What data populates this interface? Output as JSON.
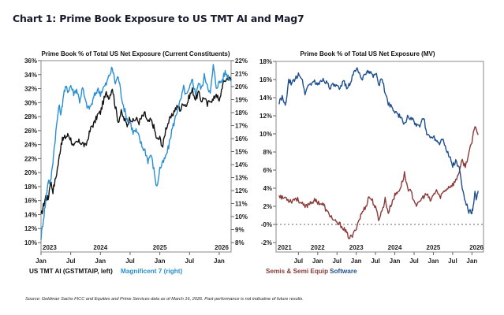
{
  "page_title": "Chart 1: Prime Book Exposure to US TMT AI and Mag7",
  "source_note": "Source: Goldman Sachs FICC and Equities and Prime Services data as of March 16, 2026. Past performance is not indicative of future results.",
  "chart_data": [
    {
      "type": "line",
      "title": "Prime Book % of Total US Net Exposure (Current Constituents)",
      "x_range": [
        "2023-01",
        "2026-03"
      ],
      "x_month_ticks": [
        "Jan",
        "Jul",
        "Jan",
        "Jul",
        "Jan",
        "Jul",
        "Jan"
      ],
      "x_year_labels": [
        "2023",
        "2024",
        "2025",
        "2026"
      ],
      "y_left": {
        "ticks": [
          "10%",
          "12%",
          "14%",
          "16%",
          "18%",
          "20%",
          "22%",
          "24%",
          "26%",
          "28%",
          "30%",
          "32%",
          "34%",
          "36%"
        ],
        "range": [
          10,
          36
        ]
      },
      "y_right": {
        "ticks": [
          "8%",
          "9%",
          "10%",
          "11%",
          "12%",
          "13%",
          "14%",
          "15%",
          "16%",
          "17%",
          "18%",
          "19%",
          "20%",
          "21%",
          "22%"
        ],
        "range": [
          8,
          22
        ]
      },
      "grid": false,
      "legend_position": "bottom",
      "series": [
        {
          "name": "US TMT AI (GSTMTAIP, left)",
          "axis": "left",
          "color": "#111111",
          "x": [
            2023.0,
            2023.04,
            2023.08,
            2023.12,
            2023.16,
            2023.2,
            2023.25,
            2023.3,
            2023.34,
            2023.38,
            2023.42,
            2023.46,
            2023.5,
            2023.55,
            2023.6,
            2023.65,
            2023.7,
            2023.75,
            2023.8,
            2023.85,
            2023.9,
            2023.95,
            2024.0,
            2024.05,
            2024.1,
            2024.15,
            2024.2,
            2024.25,
            2024.3,
            2024.35,
            2024.4,
            2024.45,
            2024.5,
            2024.55,
            2024.6,
            2024.65,
            2024.7,
            2024.75,
            2024.8,
            2024.85,
            2024.9,
            2024.95,
            2025.0,
            2025.05,
            2025.1,
            2025.15,
            2025.2,
            2025.25,
            2025.3,
            2025.35,
            2025.4,
            2025.45,
            2025.5,
            2025.55,
            2025.6,
            2025.65,
            2025.7,
            2025.75,
            2025.8,
            2025.85,
            2025.9,
            2025.95,
            2026.0,
            2026.05,
            2026.1,
            2026.15,
            2026.2
          ],
          "values": [
            13.8,
            15.2,
            16.6,
            16.2,
            18.8,
            17.4,
            19.3,
            21.8,
            24.3,
            24.9,
            25.1,
            25.4,
            24.8,
            23.6,
            24.3,
            24.4,
            24.2,
            23.7,
            25.2,
            26.6,
            27.1,
            28.2,
            28.6,
            30.2,
            31.3,
            30.8,
            32.2,
            29.5,
            27.3,
            28.6,
            27.6,
            26.8,
            27.9,
            27.3,
            27.7,
            27.2,
            27.9,
            28.4,
            27.1,
            27.5,
            26.5,
            24.7,
            24.9,
            23.7,
            26.3,
            27.3,
            28.0,
            29.0,
            29.4,
            29.0,
            30.0,
            29.6,
            31.0,
            31.8,
            30.5,
            31.4,
            30.3,
            30.8,
            29.6,
            30.5,
            30.3,
            31.4,
            30.0,
            32.4,
            33.2,
            33.6,
            33.2
          ]
        },
        {
          "name": "Magnificent 7 (right)",
          "axis": "right",
          "color": "#2a8fd1",
          "x": [
            2023.0,
            2023.04,
            2023.08,
            2023.12,
            2023.16,
            2023.2,
            2023.25,
            2023.3,
            2023.34,
            2023.38,
            2023.42,
            2023.46,
            2023.5,
            2023.55,
            2023.6,
            2023.65,
            2023.7,
            2023.75,
            2023.8,
            2023.85,
            2023.9,
            2023.95,
            2024.0,
            2024.05,
            2024.1,
            2024.15,
            2024.2,
            2024.25,
            2024.3,
            2024.35,
            2024.4,
            2024.45,
            2024.5,
            2024.55,
            2024.6,
            2024.65,
            2024.7,
            2024.75,
            2024.8,
            2024.85,
            2024.9,
            2024.95,
            2025.0,
            2025.05,
            2025.1,
            2025.15,
            2025.2,
            2025.25,
            2025.3,
            2025.35,
            2025.4,
            2025.45,
            2025.5,
            2025.55,
            2025.6,
            2025.65,
            2025.7,
            2025.75,
            2025.8,
            2025.85,
            2025.9,
            2025.95,
            2026.0,
            2026.05,
            2026.1,
            2026.15,
            2026.2
          ],
          "values": [
            8.4,
            9.8,
            11.2,
            12.8,
            12.6,
            14.3,
            16.5,
            18.5,
            17.9,
            19.5,
            19.9,
            19.7,
            20.1,
            19.5,
            19.8,
            18.9,
            19.9,
            18.8,
            18.3,
            18.6,
            19.3,
            19.8,
            19.5,
            19.9,
            20.2,
            20.9,
            21.4,
            20.3,
            20.8,
            19.4,
            18.3,
            17.5,
            17.3,
            16.5,
            16.6,
            16.1,
            15.4,
            15.1,
            14.3,
            14.8,
            13.6,
            12.2,
            13.7,
            14.1,
            14.6,
            15.4,
            16.6,
            17.4,
            18.3,
            18.9,
            19.9,
            19.3,
            19.8,
            20.6,
            19.4,
            20.3,
            19.8,
            20.8,
            20.2,
            19.4,
            21.6,
            20.0,
            20.3,
            20.5,
            21.1,
            20.8,
            20.4
          ]
        }
      ]
    },
    {
      "type": "line",
      "title": "Prime Book % of Total US Net Exposure (MV)",
      "x_range": [
        "2021-01",
        "2026-03"
      ],
      "x_month_ticks": [
        "Jul",
        "Jan",
        "Jul",
        "Jan",
        "Jul",
        "Jan",
        "Jul",
        "Jan",
        "Jul",
        "Jan"
      ],
      "x_year_labels": [
        "2021",
        "2022",
        "2023",
        "2024",
        "2025",
        "2026"
      ],
      "y": {
        "ticks": [
          "-2%",
          "-0%",
          "2%",
          "4%",
          "6%",
          "8%",
          "10%",
          "12%",
          "14%",
          "16%",
          "18%"
        ],
        "range": [
          -2,
          18
        ]
      },
      "reference_line": {
        "value": 0,
        "style": "dotted"
      },
      "grid": false,
      "legend_position": "bottom",
      "series": [
        {
          "name": "Semis & Semi Equip",
          "color": "#8b3a3a",
          "x": [
            2021.0,
            2021.08,
            2021.16,
            2021.25,
            2021.33,
            2021.42,
            2021.5,
            2021.58,
            2021.67,
            2021.75,
            2021.83,
            2021.92,
            2022.0,
            2022.08,
            2022.16,
            2022.25,
            2022.33,
            2022.42,
            2022.5,
            2022.58,
            2022.67,
            2022.75,
            2022.83,
            2022.92,
            2023.0,
            2023.08,
            2023.16,
            2023.25,
            2023.33,
            2023.42,
            2023.5,
            2023.58,
            2023.67,
            2023.75,
            2023.83,
            2023.92,
            2024.0,
            2024.08,
            2024.16,
            2024.25,
            2024.33,
            2024.42,
            2024.5,
            2024.58,
            2024.67,
            2024.75,
            2024.83,
            2024.92,
            2025.0,
            2025.08,
            2025.16,
            2025.25,
            2025.33,
            2025.42,
            2025.5,
            2025.58,
            2025.67,
            2025.75,
            2025.83,
            2025.92,
            2026.0,
            2026.08,
            2026.16
          ],
          "values": [
            3.3,
            2.9,
            3.0,
            2.7,
            2.6,
            2.9,
            2.7,
            2.3,
            1.9,
            2.2,
            2.5,
            2.6,
            2.5,
            2.3,
            2.1,
            1.3,
            1.0,
            0.4,
            0.1,
            0.0,
            -0.4,
            -1.0,
            -1.5,
            -1.2,
            -0.3,
            0.6,
            1.4,
            2.0,
            3.1,
            2.6,
            1.8,
            0.6,
            1.5,
            2.8,
            1.3,
            2.4,
            3.2,
            3.6,
            4.2,
            5.6,
            4.1,
            3.5,
            2.7,
            2.0,
            2.7,
            3.1,
            3.3,
            2.6,
            3.2,
            3.8,
            3.0,
            3.5,
            3.9,
            4.2,
            4.4,
            4.8,
            5.9,
            7.0,
            6.4,
            7.9,
            9.0,
            11.0,
            9.9
          ]
        },
        {
          "name": "Software",
          "color": "#1f4e8f",
          "x": [
            2021.0,
            2021.08,
            2021.16,
            2021.25,
            2021.33,
            2021.42,
            2021.5,
            2021.58,
            2021.67,
            2021.75,
            2021.83,
            2021.92,
            2022.0,
            2022.08,
            2022.16,
            2022.25,
            2022.33,
            2022.42,
            2022.5,
            2022.58,
            2022.67,
            2022.75,
            2022.83,
            2022.92,
            2023.0,
            2023.08,
            2023.16,
            2023.25,
            2023.33,
            2023.42,
            2023.5,
            2023.58,
            2023.67,
            2023.75,
            2023.83,
            2023.92,
            2024.0,
            2024.08,
            2024.16,
            2024.25,
            2024.33,
            2024.42,
            2024.5,
            2024.58,
            2024.67,
            2024.75,
            2024.83,
            2024.92,
            2025.0,
            2025.08,
            2025.16,
            2025.25,
            2025.33,
            2025.42,
            2025.5,
            2025.58,
            2025.67,
            2025.75,
            2025.83,
            2025.92,
            2026.0,
            2026.04,
            2026.08,
            2026.12,
            2026.16
          ],
          "values": [
            13.5,
            14.0,
            13.0,
            15.8,
            15.6,
            16.0,
            16.7,
            16.2,
            14.5,
            15.3,
            15.6,
            15.8,
            15.3,
            15.9,
            16.0,
            15.6,
            15.1,
            15.4,
            15.2,
            14.8,
            15.9,
            15.2,
            15.5,
            16.5,
            17.3,
            16.6,
            16.2,
            16.5,
            17.0,
            16.4,
            16.8,
            15.4,
            16.1,
            14.5,
            13.4,
            13.0,
            12.5,
            12.2,
            11.7,
            11.0,
            12.0,
            11.6,
            11.4,
            10.8,
            11.0,
            11.8,
            10.0,
            9.6,
            9.8,
            9.3,
            9.0,
            9.7,
            8.2,
            7.5,
            6.5,
            7.0,
            6.2,
            4.0,
            2.5,
            1.5,
            1.3,
            2.0,
            3.5,
            2.8,
            3.7
          ]
        }
      ]
    }
  ]
}
